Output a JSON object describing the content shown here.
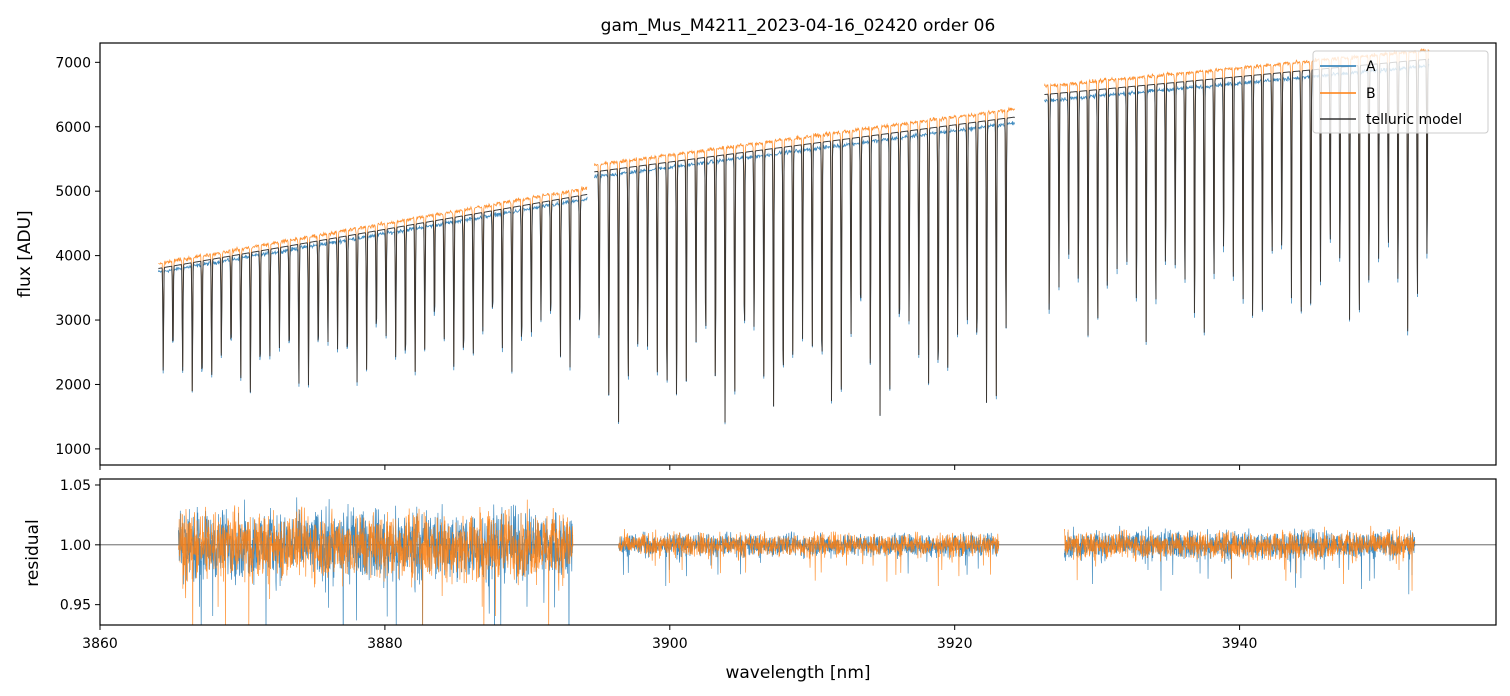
{
  "chart_data": [
    {
      "type": "line",
      "title": "gam_Mus_M4211_2023-04-16_02420  order 06",
      "xlabel": "",
      "ylabel": "flux [ADU]",
      "xlim": [
        3860,
        3958
      ],
      "ylim": [
        750,
        7300
      ],
      "xticks": [
        3860,
        3880,
        3900,
        3920,
        3940
      ],
      "yticks": [
        1000,
        2000,
        3000,
        4000,
        5000,
        6000,
        7000
      ],
      "ytick_labels": [
        "1000",
        "2000",
        "3000",
        "4000",
        "5000",
        "6000",
        "7000"
      ],
      "legend_position": "top-right",
      "segments": [
        {
          "x_start": 3864.1,
          "x_end": 3894.2,
          "continuum": [
            3800,
            4950
          ],
          "line_depth": 0.55
        },
        {
          "x_start": 3894.7,
          "x_end": 3924.2,
          "continuum": [
            5300,
            6150
          ],
          "line_depth": 0.75
        },
        {
          "x_start": 3926.3,
          "x_end": 3953.3,
          "continuum": [
            6500,
            7050
          ],
          "line_depth": 0.6
        }
      ],
      "series": [
        {
          "name": "A",
          "color": "#1f77b4",
          "continuum_scale": 0.985
        },
        {
          "name": "B",
          "color": "#ff7f0e",
          "continuum_scale": 1.02
        },
        {
          "name": "telluric model",
          "color": "#333333",
          "continuum_scale": 1.0
        }
      ]
    },
    {
      "type": "line",
      "title": "",
      "xlabel": "wavelength [nm]",
      "ylabel": "residual",
      "xlim": [
        3860,
        3958
      ],
      "ylim": [
        0.933,
        1.055
      ],
      "xticks": [
        3860,
        3880,
        3900,
        3920,
        3940
      ],
      "xtick_labels": [
        "3860",
        "3880",
        "3900",
        "3920",
        "3940"
      ],
      "yticks": [
        0.95,
        1.0,
        1.05
      ],
      "ytick_labels": [
        "0.95",
        "1.00",
        "1.05"
      ],
      "reference_line": 1.0,
      "segments": [
        {
          "x_start": 3865.5,
          "x_end": 3893.2,
          "noise": 0.03
        },
        {
          "x_start": 3896.4,
          "x_end": 3923.1,
          "noise": 0.01
        },
        {
          "x_start": 3927.7,
          "x_end": 3952.3,
          "noise": 0.012
        }
      ],
      "series": [
        {
          "name": "A",
          "color": "#1f77b4"
        },
        {
          "name": "B",
          "color": "#ff7f0e"
        }
      ]
    }
  ]
}
